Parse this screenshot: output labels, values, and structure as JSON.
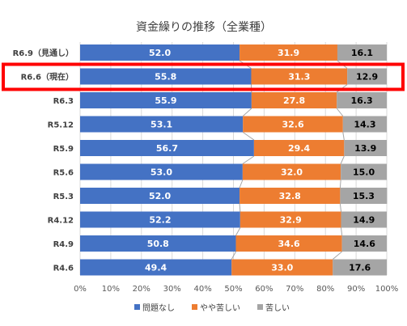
{
  "chart_data": {
    "type": "bar",
    "stacked": true,
    "orientation": "horizontal",
    "percent": true,
    "title": "資金繰りの推移（全業種）",
    "xlabel": "",
    "ylabel": "",
    "xlim": [
      0,
      100
    ],
    "x_ticks": [
      "0%",
      "10%",
      "20%",
      "30%",
      "40%",
      "50%",
      "60%",
      "70%",
      "80%",
      "90%",
      "100%"
    ],
    "grid": true,
    "legend_position": "bottom",
    "highlighted_category": "R6.6（現在）",
    "categories": [
      "R6.9（見通し）",
      "R6.6（現在）",
      "R6.3",
      "R5.12",
      "R5.9",
      "R5.6",
      "R5.3",
      "R4.12",
      "R4.9",
      "R4.6"
    ],
    "series": [
      {
        "name": "問題なし",
        "color": "#4472C4",
        "label_color": "#ffffff",
        "values": [
          52.0,
          55.8,
          55.9,
          53.1,
          56.7,
          53.0,
          52.0,
          52.2,
          50.8,
          49.4
        ],
        "labels": [
          "52.0",
          "55.8",
          "55.9",
          "53.1",
          "56.7",
          "53.0",
          "52.0",
          "52.2",
          "50.8",
          "49.4"
        ]
      },
      {
        "name": "やや苦しい",
        "color": "#ED7D31",
        "label_color": "#ffffff",
        "values": [
          31.9,
          31.3,
          27.8,
          32.6,
          29.4,
          32.0,
          32.8,
          32.9,
          34.6,
          33.0
        ],
        "labels": [
          "31.9",
          "31.3",
          "27.8",
          "32.6",
          "29.4",
          "32.0",
          "32.8",
          "32.9",
          "34.6",
          "33.0"
        ]
      },
      {
        "name": "苦しい",
        "color": "#A5A5A5",
        "label_color": "#000000",
        "values": [
          16.1,
          12.9,
          16.3,
          14.3,
          13.9,
          15.0,
          15.3,
          14.9,
          14.6,
          17.6
        ],
        "labels": [
          "16.1",
          "12.9",
          "16.3",
          "14.3",
          "13.9",
          "15.0",
          "15.3",
          "14.9",
          "14.6",
          "17.6"
        ]
      }
    ],
    "highlight_color": "#FF0000",
    "gridline_color": "#D9D9D9",
    "series_line_color": "#A6A6A6"
  }
}
